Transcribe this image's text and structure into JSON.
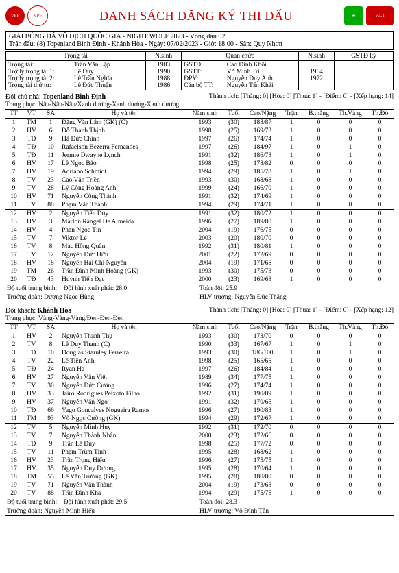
{
  "title": "DANH SÁCH ĐĂNG KÝ THI ĐẤU",
  "league": "GIẢI BÓNG ĐÁ VÔ ĐỊCH QUỐC GIA - NIGHT WOLF 2023 - Vòng đấu 02",
  "match": "Trận đấu: (8) Topenland Bình Định - Khánh Hòa - Ngày: 07/02/2023 - Giờ: 18:00 - Sân: Quy Nhơn",
  "ref_labels": {
    "trongtai": "Trọng tài",
    "nsinh": "N.sinh",
    "quanc": "Quan chức",
    "gstdky": "GSTĐ ký",
    "r1": "Trọng tài:",
    "r2": "Trợ lý trọng tài 1:",
    "r3": "Trợ lý trọng tài 2:",
    "r4": "Trọng tài thứ tư:",
    "q1": "GSTĐ:",
    "q2": "GSTT:",
    "q3": "ĐPV:",
    "q4": "Cán bộ TT:"
  },
  "refs": {
    "r1n": "Trần Văn Lập",
    "r1y": "1983",
    "r2n": "Lê Duy",
    "r2y": "1990",
    "r3n": "Lê Trần Nghĩa",
    "r3y": "1988",
    "r4n": "Lê Đức Thuận",
    "r4y": "1986",
    "q1n": "Cao Đình Khôi",
    "q1y": "1964",
    "q2n": "Võ Minh Trí",
    "q2y": "1972",
    "q3n": "Nguyễn Duy Anh",
    "q3y": "",
    "q4n": "Nguyễn Tấn Khải",
    "q4y": ""
  },
  "home": {
    "label": "Đội chủ nhà:",
    "name": "Topenland Bình Định",
    "record": "Thành tích: [Thắng: 0] [Hòa: 0] [Thua: 1] - [Điểm: 0] - [Xếp hạng: 14]",
    "kit": "Trang phục: Nâu-Nâu-Nâu/Xanh dương-Xanh dương-Xanh dương",
    "avg_start_label": "Độ tuổi trung bình:",
    "avg_start": "Đội hình xuất phát: 28.0",
    "avg_all_label": "Toàn đội: 25.9",
    "coach_label": "Trưởng đoàn: Dương Ngọc Hùng",
    "hlv_label": "HLV trưởng: Nguyễn Đức Thắng"
  },
  "away": {
    "label": "Đội khách:",
    "name": "Khánh Hòa",
    "record": "Thành tích: [Thắng: 0] [Hòa: 0] [Thua: 1] - [Điểm: 0] - [Xếp hạng: 12]",
    "kit": "Trang phục: Vàng-Vàng-Vàng/Đen-Đen-Đen",
    "avg_start_label": "Độ tuổi trung bình:",
    "avg_start": "Đội hình xuất phát: 29.5",
    "avg_all_label": "Toàn đội: 28.3",
    "coach_label": "Trưởng đoàn: Nguyễn Minh Hiếu",
    "hlv_label": "HLV trưởng: Võ Đình Tân"
  },
  "cols": {
    "tt": "TT",
    "vt": "VT",
    "sa": "SA",
    "name": "Họ và tên",
    "ns": "Năm sinh",
    "age": "Tuổi",
    "hw": "Cao/Nặng",
    "tran": "Trận",
    "bt": "B.thắng",
    "tv": "Th.Vàng",
    "td": "Th.Đỏ"
  },
  "home_players": [
    {
      "tt": "1",
      "vt": "TM",
      "sa": "1",
      "name": "Đặng Văn Lâm (GK) (C)",
      "ns": "1993",
      "age": "(30)",
      "hw": "188/87",
      "tran": "1",
      "bt": "0",
      "tv": "0",
      "td": "0"
    },
    {
      "tt": "2",
      "vt": "HV",
      "sa": "6",
      "name": "Đỗ Thanh Thịnh",
      "ns": "1998",
      "age": "(25)",
      "hw": "169/73",
      "tran": "1",
      "bt": "0",
      "tv": "0",
      "td": "0"
    },
    {
      "tt": "3",
      "vt": "TĐ",
      "sa": "9",
      "name": "Hà Đức Chinh",
      "ns": "1997",
      "age": "(26)",
      "hw": "174/74",
      "tran": "1",
      "bt": "0",
      "tv": "0",
      "td": "0"
    },
    {
      "tt": "4",
      "vt": "TĐ",
      "sa": "10",
      "name": "Rafaelson Bezerra Fernandes",
      "ns": "1997",
      "age": "(26)",
      "hw": "184/97",
      "tran": "1",
      "bt": "0",
      "tv": "1",
      "td": "0"
    },
    {
      "tt": "5",
      "vt": "TĐ",
      "sa": "11",
      "name": "Jermie Dwayne Lynch",
      "ns": "1991",
      "age": "(32)",
      "hw": "186/78",
      "tran": "1",
      "bt": "0",
      "tv": "1",
      "td": "0"
    },
    {
      "tt": "6",
      "vt": "HV",
      "sa": "17",
      "name": "Lê Ngọc Bảo",
      "ns": "1998",
      "age": "(25)",
      "hw": "178/82",
      "tran": "0",
      "bt": "0",
      "tv": "0",
      "td": "0"
    },
    {
      "tt": "7",
      "vt": "HV",
      "sa": "19",
      "name": "Adriano Schmidt",
      "ns": "1994",
      "age": "(29)",
      "hw": "185/78",
      "tran": "1",
      "bt": "0",
      "tv": "1",
      "td": "0"
    },
    {
      "tt": "8",
      "vt": "TV",
      "sa": "23",
      "name": "Cao Văn Triền",
      "ns": "1993",
      "age": "(30)",
      "hw": "168/68",
      "tran": "1",
      "bt": "0",
      "tv": "0",
      "td": "0"
    },
    {
      "tt": "9",
      "vt": "TV",
      "sa": "28",
      "name": "Lý Công Hoàng Anh",
      "ns": "1999",
      "age": "(24)",
      "hw": "166/70",
      "tran": "1",
      "bt": "0",
      "tv": "0",
      "td": "0"
    },
    {
      "tt": "10",
      "vt": "HV",
      "sa": "71",
      "name": "Nguyễn Công Thành",
      "ns": "1991",
      "age": "(32)",
      "hw": "174/69",
      "tran": "1",
      "bt": "0",
      "tv": "0",
      "td": "0"
    },
    {
      "tt": "11",
      "vt": "TV",
      "sa": "88",
      "name": "Phạm Văn Thành",
      "ns": "1994",
      "age": "(29)",
      "hw": "174/71",
      "tran": "1",
      "bt": "0",
      "tv": "0",
      "td": "0"
    },
    {
      "tt": "12",
      "vt": "HV",
      "sa": "2",
      "name": "Nguyễn Tiến Duy",
      "ns": "1991",
      "age": "(32)",
      "hw": "180/72",
      "tran": "1",
      "bt": "0",
      "tv": "0",
      "td": "0",
      "sep": true
    },
    {
      "tt": "13",
      "vt": "HV",
      "sa": "3",
      "name": "Marlon Rangel De Almeida",
      "ns": "1996",
      "age": "(27)",
      "hw": "189/80",
      "tran": "1",
      "bt": "0",
      "tv": "0",
      "td": "0"
    },
    {
      "tt": "14",
      "vt": "HV",
      "sa": "4",
      "name": "Phan Ngọc Tín",
      "ns": "2004",
      "age": "(19)",
      "hw": "176/75",
      "tran": "0",
      "bt": "0",
      "tv": "0",
      "td": "0"
    },
    {
      "tt": "15",
      "vt": "TV",
      "sa": "7",
      "name": "Viktor Le",
      "ns": "2003",
      "age": "(20)",
      "hw": "180/70",
      "tran": "0",
      "bt": "0",
      "tv": "0",
      "td": "0"
    },
    {
      "tt": "16",
      "vt": "TV",
      "sa": "8",
      "name": "Mạc Hồng Quân",
      "ns": "1992",
      "age": "(31)",
      "hw": "180/81",
      "tran": "1",
      "bt": "0",
      "tv": "0",
      "td": "0"
    },
    {
      "tt": "17",
      "vt": "TV",
      "sa": "12",
      "name": "Nguyễn Đức Hữu",
      "ns": "2001",
      "age": "(22)",
      "hw": "172/69",
      "tran": "0",
      "bt": "0",
      "tv": "0",
      "td": "0"
    },
    {
      "tt": "18",
      "vt": "HV",
      "sa": "18",
      "name": "Nguyễn Hải Chí Nguyên",
      "ns": "2004",
      "age": "(19)",
      "hw": "171/65",
      "tran": "0",
      "bt": "0",
      "tv": "0",
      "td": "0"
    },
    {
      "tt": "19",
      "vt": "TM",
      "sa": "26",
      "name": "Trần Đình Minh Hoàng (GK)",
      "ns": "1993",
      "age": "(30)",
      "hw": "175/73",
      "tran": "0",
      "bt": "0",
      "tv": "0",
      "td": "0"
    },
    {
      "tt": "20",
      "vt": "TĐ",
      "sa": "43",
      "name": "Huỳnh Tiến Đạt",
      "ns": "2000",
      "age": "(23)",
      "hw": "169/68",
      "tran": "1",
      "bt": "0",
      "tv": "0",
      "td": "0"
    }
  ],
  "away_players": [
    {
      "tt": "1",
      "vt": "HV",
      "sa": "2",
      "name": "Nguyễn Thanh Thụ",
      "ns": "1993",
      "age": "(30)",
      "hw": "173/70",
      "tran": "0",
      "bt": "0",
      "tv": "0",
      "td": "0"
    },
    {
      "tt": "2",
      "vt": "TV",
      "sa": "8",
      "name": "Lê Duy Thanh (C)",
      "ns": "1990",
      "age": "(33)",
      "hw": "167/67",
      "tran": "1",
      "bt": "0",
      "tv": "1",
      "td": "0"
    },
    {
      "tt": "3",
      "vt": "TĐ",
      "sa": "10",
      "name": "Douglas Starnley Ferreira",
      "ns": "1993",
      "age": "(30)",
      "hw": "186/100",
      "tran": "1",
      "bt": "0",
      "tv": "1",
      "td": "0"
    },
    {
      "tt": "4",
      "vt": "TV",
      "sa": "22",
      "name": "Lê Tiến Anh",
      "ns": "1998",
      "age": "(25)",
      "hw": "165/65",
      "tran": "1",
      "bt": "0",
      "tv": "0",
      "td": "0"
    },
    {
      "tt": "5",
      "vt": "TĐ",
      "sa": "24",
      "name": "Ryan Ha",
      "ns": "1997",
      "age": "(26)",
      "hw": "184/84",
      "tran": "1",
      "bt": "0",
      "tv": "0",
      "td": "0"
    },
    {
      "tt": "6",
      "vt": "HV",
      "sa": "27",
      "name": "Nguyễn Văn Việt",
      "ns": "1989",
      "age": "(34)",
      "hw": "177/75",
      "tran": "1",
      "bt": "0",
      "tv": "0",
      "td": "0"
    },
    {
      "tt": "7",
      "vt": "TV",
      "sa": "30",
      "name": "Nguyễn Đức Cường",
      "ns": "1996",
      "age": "(27)",
      "hw": "174/74",
      "tran": "1",
      "bt": "0",
      "tv": "0",
      "td": "0"
    },
    {
      "tt": "8",
      "vt": "HV",
      "sa": "33",
      "name": "Jairo Rodrigues Peixoto Filho",
      "ns": "1992",
      "age": "(31)",
      "hw": "190/89",
      "tran": "1",
      "bt": "0",
      "tv": "0",
      "td": "0"
    },
    {
      "tt": "9",
      "vt": "HV",
      "sa": "37",
      "name": "Nguyễn Văn Ngọ",
      "ns": "1991",
      "age": "(32)",
      "hw": "170/65",
      "tran": "1",
      "bt": "0",
      "tv": "0",
      "td": "0"
    },
    {
      "tt": "10",
      "vt": "TĐ",
      "sa": "66",
      "name": "Yago Goncalves Nogueira Ramos",
      "ns": "1996",
      "age": "(27)",
      "hw": "190/83",
      "tran": "1",
      "bt": "0",
      "tv": "0",
      "td": "0"
    },
    {
      "tt": "11",
      "vt": "TM",
      "sa": "93",
      "name": "Võ Ngọc Cường (GK)",
      "ns": "1994",
      "age": "(29)",
      "hw": "172/67",
      "tran": "1",
      "bt": "0",
      "tv": "0",
      "td": "0"
    },
    {
      "tt": "12",
      "vt": "TV",
      "sa": "5",
      "name": "Nguyễn Minh Huy",
      "ns": "1992",
      "age": "(31)",
      "hw": "172/70",
      "tran": "0",
      "bt": "0",
      "tv": "0",
      "td": "0",
      "sep": true
    },
    {
      "tt": "13",
      "vt": "TV",
      "sa": "7",
      "name": "Nguyễn Thành Nhân",
      "ns": "2000",
      "age": "(23)",
      "hw": "172/66",
      "tran": "0",
      "bt": "0",
      "tv": "0",
      "td": "0"
    },
    {
      "tt": "14",
      "vt": "TĐ",
      "sa": "9",
      "name": "Trần Lê Duy",
      "ns": "1998",
      "age": "(25)",
      "hw": "177/72",
      "tran": "0",
      "bt": "0",
      "tv": "0",
      "td": "0"
    },
    {
      "tt": "15",
      "vt": "TV",
      "sa": "11",
      "name": "Phạm Trùm Tỉnh",
      "ns": "1995",
      "age": "(28)",
      "hw": "168/62",
      "tran": "1",
      "bt": "0",
      "tv": "0",
      "td": "0"
    },
    {
      "tt": "16",
      "vt": "HV",
      "sa": "23",
      "name": "Trần Trọng Hiếu",
      "ns": "1996",
      "age": "(27)",
      "hw": "175/75",
      "tran": "1",
      "bt": "0",
      "tv": "0",
      "td": "0"
    },
    {
      "tt": "17",
      "vt": "HV",
      "sa": "35",
      "name": "Nguyễn Duy Dương",
      "ns": "1995",
      "age": "(28)",
      "hw": "170/64",
      "tran": "1",
      "bt": "0",
      "tv": "0",
      "td": "0"
    },
    {
      "tt": "18",
      "vt": "TM",
      "sa": "55",
      "name": "Lê Văn Trường (GK)",
      "ns": "1995",
      "age": "(28)",
      "hw": "180/80",
      "tran": "0",
      "bt": "0",
      "tv": "0",
      "td": "0"
    },
    {
      "tt": "19",
      "vt": "TV",
      "sa": "71",
      "name": "Nguyễn Văn Thành",
      "ns": "2004",
      "age": "(19)",
      "hw": "173/68",
      "tran": "0",
      "bt": "0",
      "tv": "0",
      "td": "0"
    },
    {
      "tt": "20",
      "vt": "TV",
      "sa": "88",
      "name": "Trần Đình Kha",
      "ns": "1994",
      "age": "(29)",
      "hw": "175/75",
      "tran": "1",
      "bt": "0",
      "tv": "0",
      "td": "0"
    }
  ]
}
